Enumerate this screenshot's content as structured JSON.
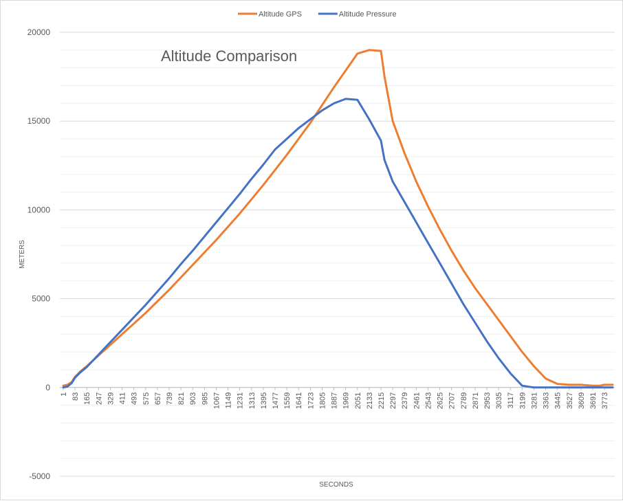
{
  "chart_data": {
    "type": "line",
    "title": "Altitude Comparison",
    "xlabel": "SECONDS",
    "ylabel": "METERS",
    "ylim": [
      -5000,
      20000
    ],
    "yticks": [
      -5000,
      0,
      5000,
      10000,
      15000,
      20000
    ],
    "xlim": [
      1,
      3830
    ],
    "xticks": [
      1,
      83,
      165,
      247,
      329,
      411,
      493,
      575,
      657,
      739,
      821,
      903,
      985,
      1067,
      1149,
      1231,
      1313,
      1395,
      1477,
      1559,
      1641,
      1723,
      1805,
      1887,
      1969,
      2051,
      2133,
      2215,
      2297,
      2379,
      2461,
      2543,
      2625,
      2707,
      2789,
      2871,
      2953,
      3035,
      3117,
      3199,
      3281,
      3363,
      3445,
      3527,
      3609,
      3691,
      3773
    ],
    "grid": "horizontal",
    "legend_position": "top",
    "series": [
      {
        "name": "Altitude GPS",
        "color": "#ED7D31",
        "x": [
          1,
          30,
          60,
          83,
          120,
          165,
          247,
          329,
          411,
          493,
          575,
          657,
          739,
          821,
          903,
          985,
          1067,
          1149,
          1231,
          1313,
          1395,
          1477,
          1559,
          1641,
          1723,
          1805,
          1887,
          1969,
          2051,
          2133,
          2215,
          2240,
          2297,
          2379,
          2461,
          2543,
          2625,
          2707,
          2789,
          2871,
          2953,
          3035,
          3117,
          3199,
          3281,
          3363,
          3445,
          3527,
          3609,
          3691,
          3740,
          3773,
          3800,
          3830
        ],
        "y": [
          100,
          150,
          300,
          600,
          900,
          1200,
          1800,
          2400,
          3000,
          3600,
          4200,
          4850,
          5500,
          6200,
          6900,
          7600,
          8300,
          9050,
          9800,
          10600,
          11400,
          12250,
          13100,
          14000,
          14900,
          15900,
          16900,
          17850,
          18800,
          19000,
          18950,
          17500,
          15000,
          13200,
          11600,
          10200,
          8900,
          7700,
          6600,
          5600,
          4700,
          3800,
          2900,
          2000,
          1200,
          500,
          200,
          150,
          150,
          100,
          100,
          150,
          150,
          150
        ],
        "y_fixed": true
      },
      {
        "name": "Altitude Pressure",
        "color": "#4472C4",
        "x": [
          1,
          30,
          60,
          83,
          120,
          165,
          247,
          329,
          411,
          493,
          575,
          657,
          739,
          821,
          903,
          985,
          1067,
          1149,
          1231,
          1313,
          1395,
          1477,
          1559,
          1641,
          1723,
          1805,
          1887,
          1969,
          2051,
          2133,
          2215,
          2240,
          2297,
          2379,
          2461,
          2543,
          2625,
          2707,
          2789,
          2871,
          2953,
          3035,
          3117,
          3199,
          3281,
          3363,
          3445,
          3527,
          3609,
          3691,
          3740,
          3773,
          3800,
          3830
        ],
        "y": [
          0,
          50,
          250,
          550,
          850,
          1150,
          1850,
          2550,
          3250,
          3950,
          4650,
          5400,
          6150,
          6950,
          7700,
          8500,
          9300,
          10100,
          10900,
          11750,
          12550,
          13400,
          14000,
          14600,
          15100,
          15600,
          16000,
          16250,
          16200,
          15100,
          13900,
          12800,
          11600,
          10450,
          9300,
          8150,
          7000,
          5850,
          4700,
          3650,
          2600,
          1650,
          800,
          100,
          0,
          0,
          0,
          0,
          0,
          0,
          0,
          0,
          0,
          0
        ]
      }
    ]
  }
}
